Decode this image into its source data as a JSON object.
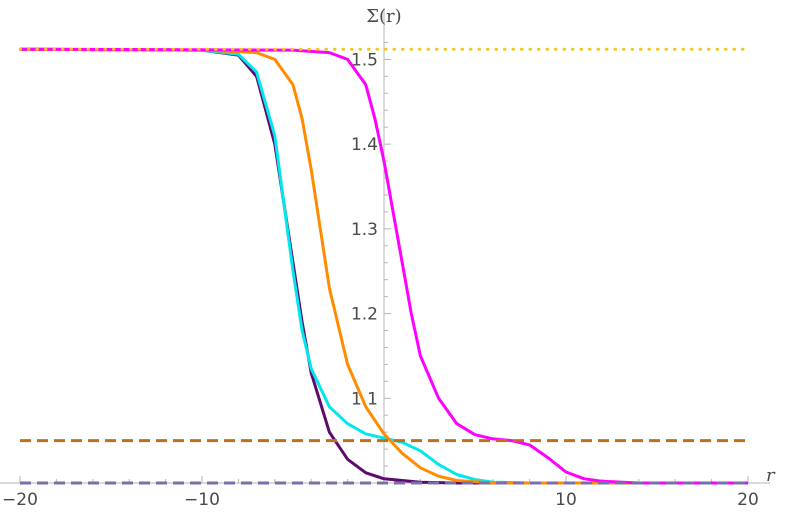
{
  "chart_data": {
    "type": "line",
    "xlabel": "r",
    "ylabel": "Σ(r)",
    "xlim": [
      -20,
      20
    ],
    "ylim": [
      1.0,
      1.53
    ],
    "x_ticks": [
      -20,
      -10,
      0,
      10,
      20
    ],
    "x_tick_labels": [
      "−20",
      "−10",
      "",
      "10",
      "20"
    ],
    "y_ticks": [
      1.1,
      1.2,
      1.3,
      1.4,
      1.5
    ],
    "y_tick_labels": [
      "1.1",
      "1.2",
      "1.3",
      "1.4",
      "1.5"
    ],
    "grid": false,
    "legend": "none",
    "series": [
      {
        "color": "#5e0b6e",
        "style": "solid",
        "x": [
          -20,
          -10,
          -8,
          -7,
          -6,
          -5.5,
          -5,
          -4.5,
          -4,
          -3,
          -2,
          -1,
          0,
          2,
          4,
          6,
          20
        ],
        "y": [
          1.512,
          1.511,
          1.505,
          1.48,
          1.4,
          1.33,
          1.26,
          1.19,
          1.13,
          1.06,
          1.028,
          1.012,
          1.005,
          1.001,
          1.0,
          1.0,
          1.0
        ]
      },
      {
        "color": "#00e8ee",
        "style": "solid",
        "x": [
          -20,
          -10,
          -8,
          -7,
          -6,
          -5.5,
          -5,
          -4.5,
          -4,
          -3,
          -2,
          -1,
          0,
          1,
          2,
          3,
          4,
          5,
          6,
          8,
          20
        ],
        "y": [
          1.512,
          1.511,
          1.506,
          1.485,
          1.41,
          1.33,
          1.25,
          1.18,
          1.135,
          1.09,
          1.07,
          1.058,
          1.053,
          1.048,
          1.038,
          1.022,
          1.01,
          1.004,
          1.001,
          1.0,
          1.0
        ]
      },
      {
        "color": "#ff8c00",
        "style": "solid",
        "x": [
          -20,
          -10,
          -7,
          -6,
          -5,
          -4.5,
          -4,
          -3.5,
          -3,
          -2,
          -1,
          0,
          1,
          2,
          3,
          4,
          6,
          20
        ],
        "y": [
          1.512,
          1.511,
          1.508,
          1.5,
          1.47,
          1.43,
          1.37,
          1.3,
          1.23,
          1.14,
          1.09,
          1.058,
          1.035,
          1.018,
          1.008,
          1.003,
          1.0,
          1.0
        ]
      },
      {
        "color": "#ff00ff",
        "style": "solid",
        "x": [
          -20,
          -5,
          -3,
          -2,
          -1,
          -0.5,
          0,
          0.5,
          1,
          1.5,
          2,
          3,
          4,
          5,
          6,
          7,
          8,
          9,
          10,
          11,
          12,
          14,
          20
        ],
        "y": [
          1.512,
          1.511,
          1.508,
          1.5,
          1.47,
          1.43,
          1.38,
          1.32,
          1.26,
          1.2,
          1.15,
          1.1,
          1.07,
          1.057,
          1.052,
          1.05,
          1.045,
          1.03,
          1.013,
          1.005,
          1.002,
          1.0,
          1.0
        ]
      },
      {
        "color": "#f5c518",
        "style": "dotted",
        "x": [
          -20,
          20
        ],
        "y": [
          1.512,
          1.512
        ]
      },
      {
        "color": "#c0701a",
        "style": "dashed",
        "x": [
          -20,
          20
        ],
        "y": [
          1.05,
          1.05
        ]
      },
      {
        "color": "#7a6fa8",
        "style": "dashed",
        "x": [
          -20,
          20
        ],
        "y": [
          1.0,
          1.0
        ]
      }
    ]
  }
}
